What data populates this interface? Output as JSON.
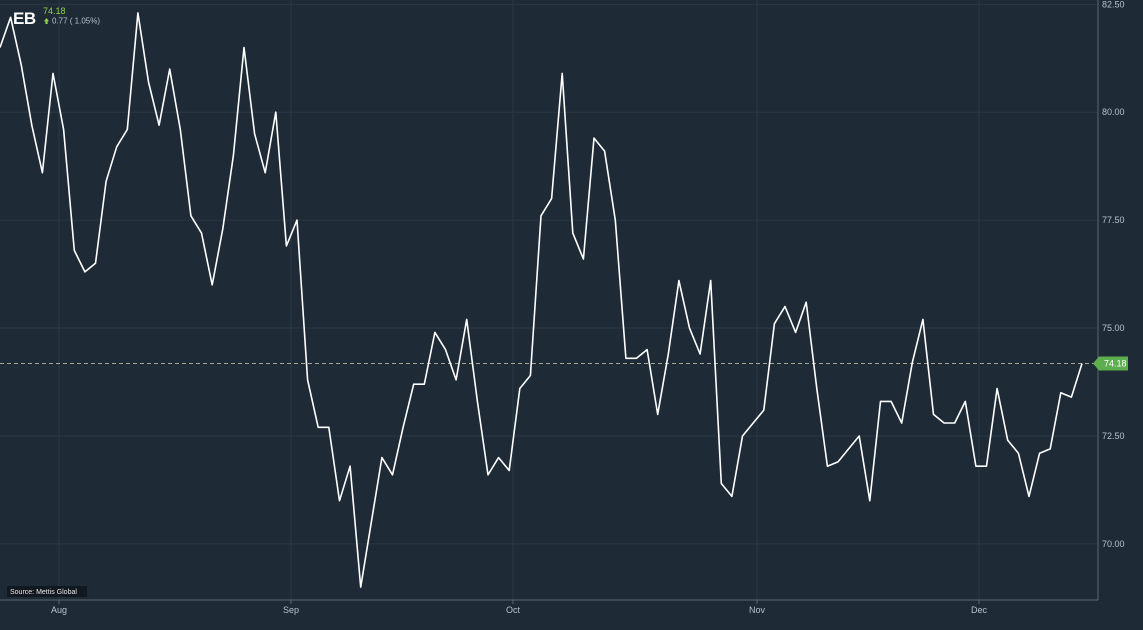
{
  "header": {
    "ticker": "EB",
    "last_price": "74.18",
    "change": "0.77 ( 1.05%)"
  },
  "source": "Source: Mettis Global",
  "price_tag": "74.18",
  "colors": {
    "background": "#1e2a36",
    "line": "#ffffff",
    "positive": "#8fd14f",
    "grid": "#2a3845"
  },
  "chart_data": {
    "type": "line",
    "title": "",
    "xlabel": "",
    "ylabel": "",
    "x_tick_labels": [
      "Aug",
      "Sep",
      "Oct",
      "Nov",
      "Dec"
    ],
    "y_tick_labels": [
      "70.00",
      "72.50",
      "75.00",
      "77.50",
      "80.00",
      "82.50"
    ],
    "y_ticks": [
      70,
      72.5,
      75,
      77.5,
      80,
      82.5
    ],
    "ylim": [
      68.7,
      82.6
    ],
    "reference_value": 74.18,
    "grid": true,
    "series": [
      {
        "values": [
          81.5,
          82.2,
          81.1,
          79.7,
          78.6,
          80.9,
          79.6,
          76.8,
          76.3,
          76.5,
          78.4,
          79.2,
          79.6,
          82.3,
          80.7,
          79.7,
          81.0,
          79.6,
          77.6,
          77.2,
          76.0,
          77.3,
          79.0,
          81.5,
          79.5,
          78.6,
          80.0,
          76.9,
          77.5,
          73.8,
          72.7,
          72.7,
          71.0,
          71.8,
          69.0,
          70.5,
          72.0,
          71.6,
          72.7,
          73.7,
          73.7,
          74.9,
          74.5,
          73.8,
          75.2,
          73.3,
          71.6,
          72.0,
          71.7,
          73.6,
          73.9,
          77.6,
          78.0,
          80.9,
          77.2,
          76.6,
          79.4,
          79.1,
          77.5,
          74.3,
          74.3,
          74.5,
          73.0,
          74.4,
          76.1,
          75.0,
          74.4,
          76.1,
          71.4,
          71.1,
          72.5,
          72.8,
          73.1,
          75.1,
          75.5,
          74.9,
          75.6,
          73.6,
          71.8,
          71.9,
          72.2,
          72.5,
          71.0,
          73.3,
          73.3,
          72.8,
          74.2,
          75.2,
          73.0,
          72.8,
          72.8,
          73.3,
          71.8,
          71.8,
          73.6,
          72.4,
          72.1,
          71.1,
          72.1,
          72.2,
          73.5,
          73.4,
          74.18
        ]
      }
    ]
  }
}
